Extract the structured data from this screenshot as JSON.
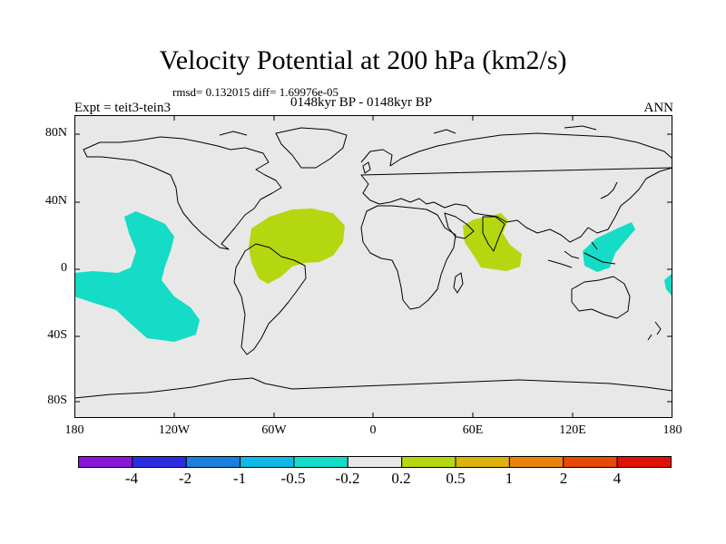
{
  "title": "Velocity Potential at 200 hPa (km2/s)",
  "stats": "rmsd= 0.132015  diff= 1.69976e-05",
  "experiment": "Expt = teit3-tein3",
  "period": "0148kyr BP - 0148kyr BP",
  "season": "ANN",
  "lat_labels": [
    "80N",
    "40N",
    "0",
    "40S",
    "80S"
  ],
  "lon_labels": [
    "180",
    "120W",
    "60W",
    "0",
    "60E",
    "120E",
    "180"
  ],
  "colorbar": {
    "colors": [
      "#8a17d8",
      "#2b2ee0",
      "#1b7fdd",
      "#10b9e6",
      "#14dcc6",
      "#e8e8e8",
      "#b5d70f",
      "#ddb20c",
      "#e8820a",
      "#e54a07",
      "#e01206"
    ],
    "labels": [
      "-4",
      "-2",
      "-1",
      "-0.5",
      "-0.2",
      "0.2",
      "0.5",
      "1",
      "2",
      "4"
    ]
  },
  "map": {
    "background": "#e8e8e8",
    "anomalies": [
      {
        "name": "central-pacific-negative",
        "level": "-0.5 to -0.2",
        "color": "#14dcc6"
      },
      {
        "name": "atlantic-amazon-positive",
        "level": "0.2 to 0.5",
        "color": "#b5d70f"
      },
      {
        "name": "indian-ocean-positive",
        "level": "0.2 to 0.5",
        "color": "#b5d70f"
      },
      {
        "name": "west-pacific-negative",
        "level": "-0.5 to -0.2",
        "color": "#14dcc6"
      },
      {
        "name": "dateline-negative",
        "level": "-0.5 to -0.2",
        "color": "#14dcc6"
      }
    ]
  }
}
